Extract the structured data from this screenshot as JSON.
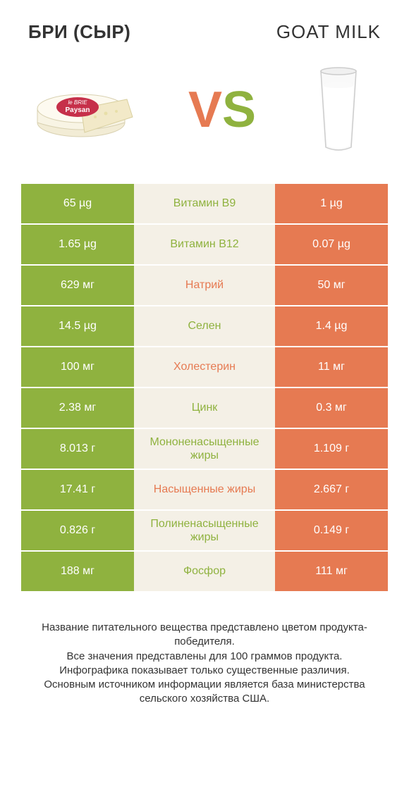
{
  "header": {
    "left_title": "БРИ (СЫР)",
    "right_title": "GOAT MILK"
  },
  "vs": {
    "v": "V",
    "s": "S"
  },
  "colors": {
    "green": "#8fb23f",
    "orange": "#e67a52",
    "mid_bg": "#f4f0e6"
  },
  "rows": [
    {
      "left": "65 µg",
      "mid": "Витамин B9",
      "right": "1 µg",
      "mid_color": "green"
    },
    {
      "left": "1.65 µg",
      "mid": "Витамин B12",
      "right": "0.07 µg",
      "mid_color": "green"
    },
    {
      "left": "629 мг",
      "mid": "Натрий",
      "right": "50 мг",
      "mid_color": "orange"
    },
    {
      "left": "14.5 µg",
      "mid": "Селен",
      "right": "1.4 µg",
      "mid_color": "green"
    },
    {
      "left": "100 мг",
      "mid": "Холестерин",
      "right": "11 мг",
      "mid_color": "orange"
    },
    {
      "left": "2.38 мг",
      "mid": "Цинк",
      "right": "0.3 мг",
      "mid_color": "green"
    },
    {
      "left": "8.013 г",
      "mid": "Мононенасыщенные жиры",
      "right": "1.109 г",
      "mid_color": "green"
    },
    {
      "left": "17.41 г",
      "mid": "Насыщенные жиры",
      "right": "2.667 г",
      "mid_color": "orange"
    },
    {
      "left": "0.826 г",
      "mid": "Полиненасыщенные жиры",
      "right": "0.149 г",
      "mid_color": "green"
    },
    {
      "left": "188 мг",
      "mid": "Фосфор",
      "right": "111 мг",
      "mid_color": "green"
    }
  ],
  "footer": {
    "line1": "Название питательного вещества представлено цветом продукта-победителя.",
    "line2": "Все значения представлены для 100 граммов продукта.",
    "line3": "Инфографика показывает только существенные различия.",
    "line4": "Основным источником информации является база министерства сельского хозяйства США."
  }
}
